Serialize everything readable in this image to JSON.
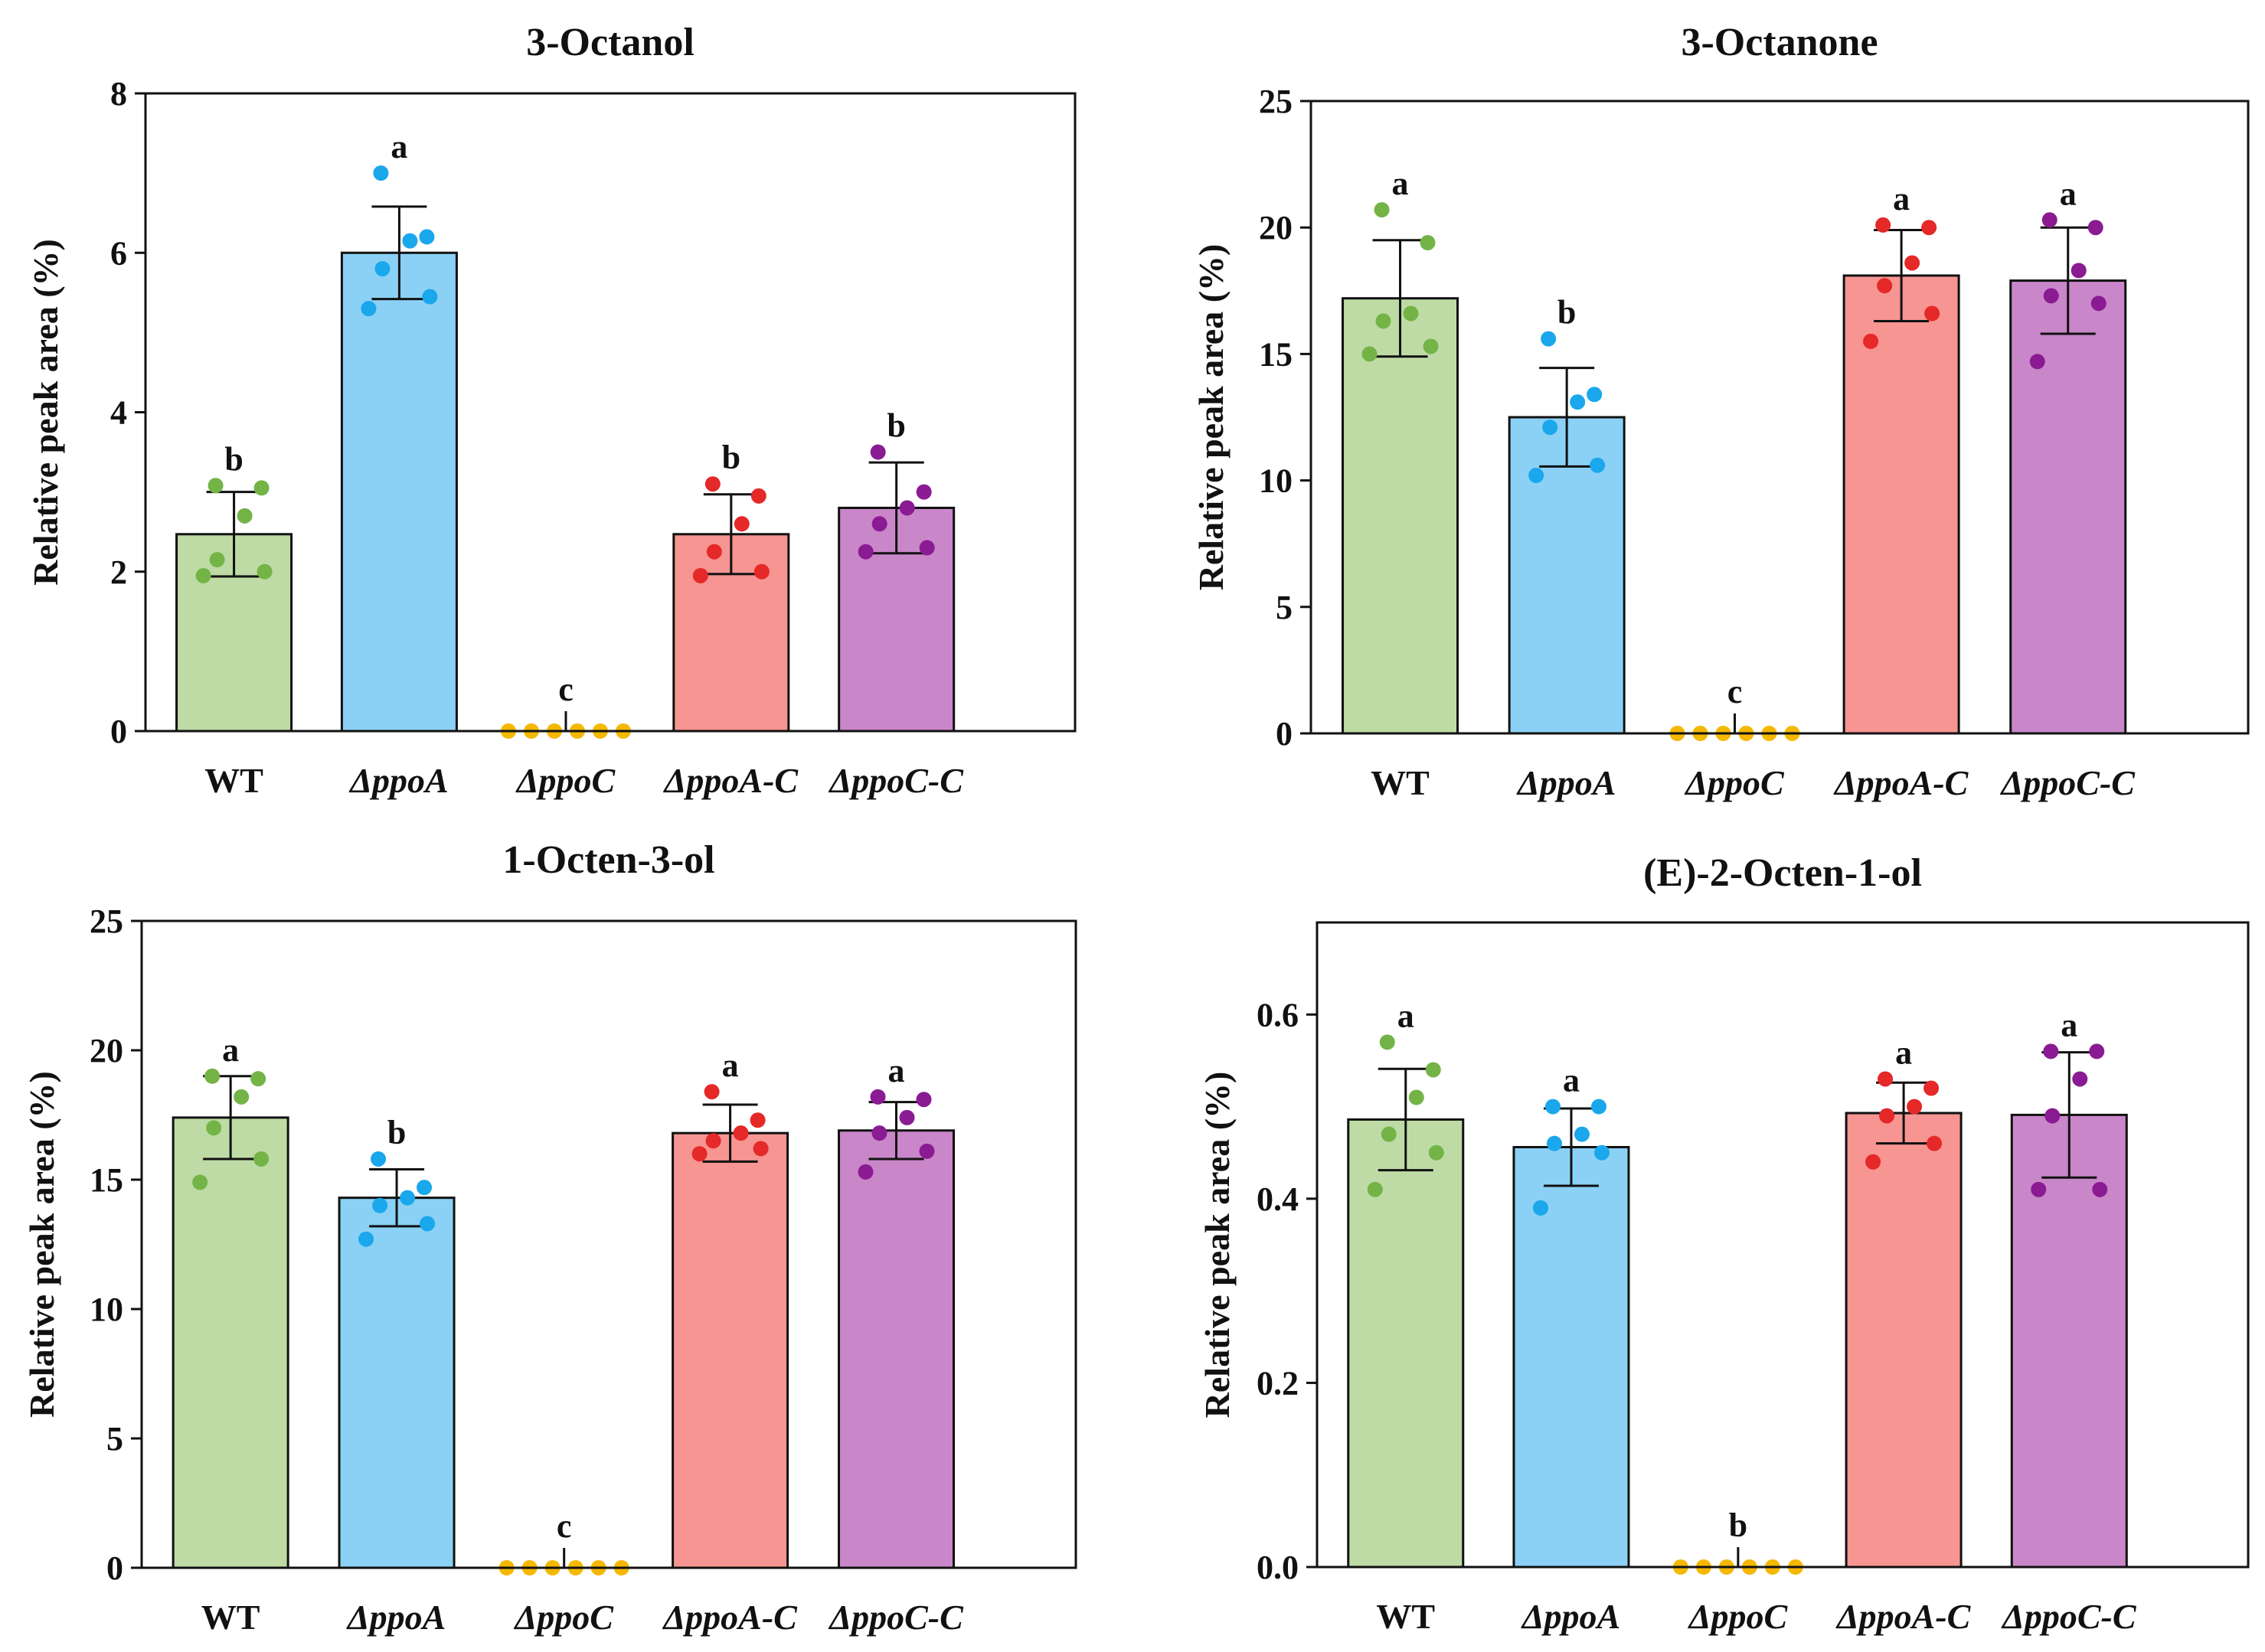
{
  "colors": {
    "bars": [
      "#bedba6",
      "#8bd1f5",
      "#f6c34e",
      "#f69592",
      "#c987c9"
    ],
    "points": [
      "#74b447",
      "#1aa7ec",
      "#f5b800",
      "#e52828",
      "#8a1b93"
    ],
    "outline": "#111111"
  },
  "chart_data": [
    {
      "type": "bar",
      "title": "3-Octanol",
      "xlabel": "",
      "ylabel": "Relative peak area (%)",
      "categories": [
        "WT",
        "ΔppoA",
        "ΔppoC",
        "ΔppoA-C",
        "ΔppoC-C"
      ],
      "category_italic": [
        false,
        true,
        true,
        true,
        true
      ],
      "ylim": [
        0,
        8
      ],
      "yticks": [
        0,
        2,
        4,
        6,
        8
      ],
      "ytick_labels": [
        "0",
        "2",
        "4",
        "6",
        "8"
      ],
      "values": [
        2.47,
        6.0,
        0.0,
        2.47,
        2.8
      ],
      "errors": [
        0.53,
        0.58,
        0.0,
        0.5,
        0.57
      ],
      "letters": [
        "b",
        "a",
        "c",
        "b",
        "b"
      ],
      "points": [
        [
          3.08,
          3.05,
          2.7,
          2.15,
          2.0,
          1.95
        ],
        [
          7.0,
          6.2,
          6.15,
          5.8,
          5.45,
          5.3
        ],
        [
          0,
          0,
          0,
          0,
          0,
          0
        ],
        [
          3.1,
          2.95,
          2.6,
          2.25,
          2.0,
          1.95
        ],
        [
          3.5,
          3.0,
          2.8,
          2.6,
          2.3,
          2.25
        ]
      ]
    },
    {
      "type": "bar",
      "title": "3-Octanone",
      "xlabel": "",
      "ylabel": "Relative peak area (%)",
      "categories": [
        "WT",
        "ΔppoA",
        "ΔppoC",
        "ΔppoA-C",
        "ΔppoC-C"
      ],
      "category_italic": [
        false,
        true,
        true,
        true,
        true
      ],
      "ylim": [
        0,
        25
      ],
      "yticks": [
        0,
        5,
        10,
        15,
        20,
        25
      ],
      "ytick_labels": [
        "0",
        "5",
        "10",
        "15",
        "20",
        "25"
      ],
      "values": [
        17.2,
        12.5,
        0.0,
        18.1,
        17.9
      ],
      "errors": [
        2.3,
        1.95,
        0.0,
        1.8,
        2.1
      ],
      "letters": [
        "a",
        "b",
        "c",
        "a",
        "a"
      ],
      "points": [
        [
          20.7,
          19.4,
          16.6,
          16.3,
          15.3,
          15.0
        ],
        [
          15.6,
          13.4,
          13.1,
          12.1,
          10.6,
          10.2
        ],
        [
          0,
          0,
          0,
          0,
          0,
          0
        ],
        [
          20.1,
          20.0,
          18.6,
          17.7,
          16.6,
          15.5
        ],
        [
          20.3,
          20.0,
          18.3,
          17.3,
          17.0,
          14.7
        ]
      ]
    },
    {
      "type": "bar",
      "title": "1-Octen-3-ol",
      "xlabel": "",
      "ylabel": "Relative peak area (%)",
      "categories": [
        "WT",
        "ΔppoA",
        "ΔppoC",
        "ΔppoA-C",
        "ΔppoC-C"
      ],
      "category_italic": [
        false,
        true,
        true,
        true,
        true
      ],
      "ylim": [
        0,
        25
      ],
      "yticks": [
        0,
        5,
        10,
        15,
        20,
        25
      ],
      "ytick_labels": [
        "0",
        "5",
        "10",
        "15",
        "20",
        "25"
      ],
      "values": [
        17.4,
        14.3,
        0.0,
        16.8,
        16.9
      ],
      "errors": [
        1.6,
        1.1,
        0.0,
        1.1,
        1.1
      ],
      "letters": [
        "a",
        "b",
        "c",
        "a",
        "a"
      ],
      "points": [
        [
          19.0,
          18.9,
          18.2,
          17.0,
          15.8,
          14.9
        ],
        [
          15.8,
          14.7,
          14.3,
          14.0,
          13.3,
          12.7
        ],
        [
          0,
          0,
          0,
          0,
          0,
          0
        ],
        [
          18.4,
          17.3,
          16.8,
          16.5,
          16.2,
          16.0
        ],
        [
          18.2,
          18.1,
          17.4,
          16.8,
          16.1,
          15.3
        ]
      ]
    },
    {
      "type": "bar",
      "title": "(E)-2-Octen-1-ol",
      "xlabel": "",
      "ylabel": "Relative peak area (%)",
      "categories": [
        "WT",
        "ΔppoA",
        "ΔppoC",
        "ΔppoA-C",
        "ΔppoC-C"
      ],
      "category_italic": [
        false,
        true,
        true,
        true,
        true
      ],
      "ylim": [
        0.0,
        0.7
      ],
      "yticks": [
        0.0,
        0.2,
        0.4,
        0.6
      ],
      "ytick_labels": [
        "0.0",
        "0.2",
        "0.4",
        "0.6"
      ],
      "values": [
        0.486,
        0.456,
        0.0,
        0.493,
        0.491
      ],
      "errors": [
        0.055,
        0.042,
        0.0,
        0.033,
        0.068
      ],
      "letters": [
        "a",
        "a",
        "b",
        "a",
        "a"
      ],
      "points": [
        [
          0.57,
          0.54,
          0.51,
          0.47,
          0.45,
          0.41
        ],
        [
          0.5,
          0.5,
          0.47,
          0.46,
          0.45,
          0.39
        ],
        [
          0,
          0,
          0,
          0,
          0,
          0
        ],
        [
          0.53,
          0.52,
          0.5,
          0.49,
          0.46,
          0.44
        ],
        [
          0.56,
          0.56,
          0.53,
          0.49,
          0.41,
          0.41
        ]
      ]
    }
  ]
}
